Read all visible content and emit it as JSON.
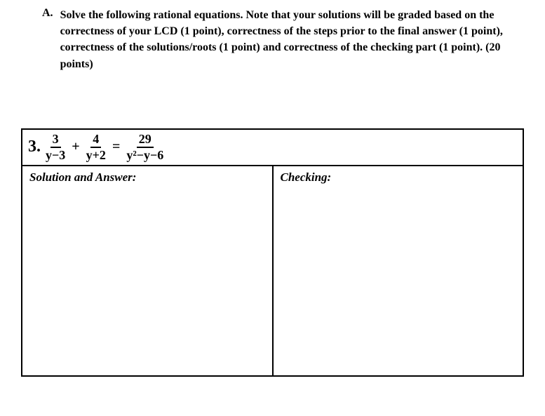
{
  "instruction": {
    "letter": "A.",
    "text": "Solve the following rational equations. Note that your solutions will be graded based on the correctness of your LCD (1 point), correctness of the steps prior to the final answer (1 point), correctness of the solutions/roots (1 point) and correctness of the checking part (1 point). (20 points)"
  },
  "problem": {
    "number": "3.",
    "frac1": {
      "num": "3",
      "den": "y−3"
    },
    "op1": "+",
    "frac2": {
      "num": "4",
      "den": "y+2"
    },
    "op2": "=",
    "frac3": {
      "num": "29",
      "den": "y²−y−6"
    }
  },
  "labels": {
    "solution": "Solution and Answer:",
    "checking": "Checking:"
  },
  "style": {
    "text_color": "#000000",
    "background_color": "#ffffff",
    "border_color": "#000000",
    "instruction_fontsize": 16,
    "equation_fontsize": 20,
    "label_fontsize": 17
  }
}
